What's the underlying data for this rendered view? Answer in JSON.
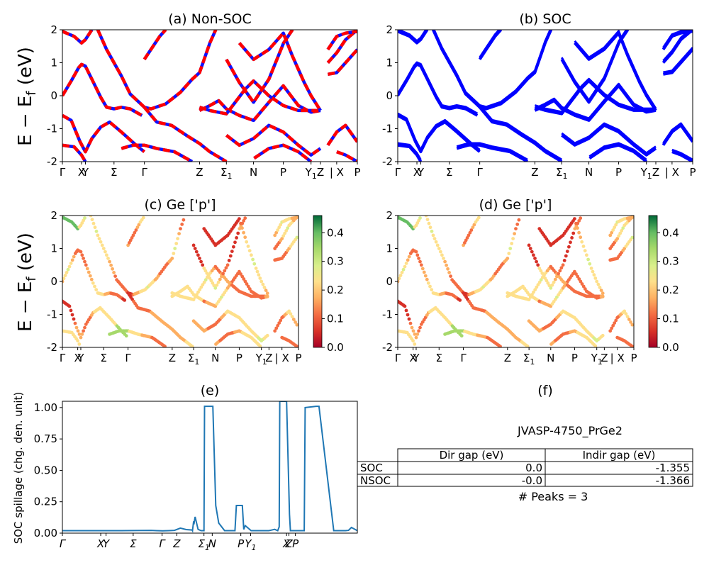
{
  "ylabel_main": "E − E",
  "ylabel_sub": "f",
  "ylabel_unit": " (eV)",
  "panels": {
    "a": {
      "title": "(a) Non-SOC",
      "ticks": [
        {
          "label": "Γ",
          "k": 0.0
        },
        {
          "label": "X",
          "k": 0.065
        },
        {
          "label": "Y",
          "k": 0.078
        },
        {
          "label": "Σ",
          "k": 0.175
        },
        {
          "label": "Γ",
          "k": 0.278
        },
        {
          "label": "Z",
          "k": 0.465
        },
        {
          "label": "Σ",
          "sub": "1",
          "k": 0.556
        },
        {
          "label": "N",
          "k": 0.648
        },
        {
          "label": "P",
          "k": 0.749
        },
        {
          "label": "Y",
          "sub": "1",
          "k": 0.843
        },
        {
          "label": "Z",
          "k": 0.875
        },
        {
          "label": "| X",
          "k": 0.93
        },
        {
          "label": "P",
          "k": 1.0
        }
      ],
      "yticks": [
        2,
        1,
        0,
        -1,
        -2
      ]
    },
    "b": {
      "title": "(b) SOC",
      "ticks": [
        {
          "label": "Γ",
          "k": 0.0
        },
        {
          "label": "X",
          "k": 0.065
        },
        {
          "label": "Y",
          "k": 0.078
        },
        {
          "label": "Σ",
          "k": 0.175
        },
        {
          "label": "Γ",
          "k": 0.278
        },
        {
          "label": "Z",
          "k": 0.465
        },
        {
          "label": "Σ",
          "sub": "1",
          "k": 0.556
        },
        {
          "label": "N",
          "k": 0.648
        },
        {
          "label": "P",
          "k": 0.749
        },
        {
          "label": "Y",
          "sub": "1",
          "k": 0.843
        },
        {
          "label": "Z",
          "k": 0.875
        },
        {
          "label": "| X",
          "k": 0.93
        },
        {
          "label": "P",
          "k": 1.0
        }
      ],
      "yticks": [
        2,
        1,
        0,
        -1,
        -2
      ]
    },
    "c": {
      "title": "(c)  Ge ['p']",
      "ticks": [
        {
          "label": "Γ",
          "k": 0.0
        },
        {
          "label": "X",
          "k": 0.065
        },
        {
          "label": "Y",
          "k": 0.078
        },
        {
          "label": "Σ",
          "k": 0.175
        },
        {
          "label": "Γ",
          "k": 0.278
        },
        {
          "label": "Z",
          "k": 0.465
        },
        {
          "label": "Σ",
          "sub": "1",
          "k": 0.556
        },
        {
          "label": "N",
          "k": 0.648
        },
        {
          "label": "P",
          "k": 0.749
        },
        {
          "label": "Y",
          "sub": "1",
          "k": 0.843
        },
        {
          "label": "Z",
          "k": 0.875
        },
        {
          "label": "| X",
          "k": 0.93
        },
        {
          "label": "P",
          "k": 1.0
        }
      ],
      "yticks": [
        2,
        1,
        0,
        -1,
        -2
      ],
      "colorbar_ticks": [
        "0.4",
        "0.3",
        "0.2",
        "0.1",
        "0.0"
      ]
    },
    "d": {
      "title": "(d) Ge ['p']",
      "ticks": [
        {
          "label": "Γ",
          "k": 0.0
        },
        {
          "label": "X",
          "k": 0.065
        },
        {
          "label": "Y",
          "k": 0.078
        },
        {
          "label": "Σ",
          "k": 0.175
        },
        {
          "label": "Γ",
          "k": 0.278
        },
        {
          "label": "Z",
          "k": 0.465
        },
        {
          "label": "Σ",
          "sub": "1",
          "k": 0.556
        },
        {
          "label": "N",
          "k": 0.648
        },
        {
          "label": "P",
          "k": 0.749
        },
        {
          "label": "Y",
          "sub": "1",
          "k": 0.843
        },
        {
          "label": "Z",
          "k": 0.875
        },
        {
          "label": "| X",
          "k": 0.93
        },
        {
          "label": "P",
          "k": 1.0
        }
      ],
      "yticks": [
        2,
        1,
        0,
        -1,
        -2
      ],
      "colorbar_ticks": [
        "0.4",
        "0.3",
        "0.2",
        "0.1",
        "0.0"
      ]
    },
    "e": {
      "title": "(e)",
      "ylabel": "SOC spillage (chg. den. unit)",
      "yticks": [
        "1.00",
        "0.75",
        "0.50",
        "0.25",
        "0.00"
      ],
      "ticks": [
        {
          "label": "Γ",
          "k": 0.0
        },
        {
          "label": "X",
          "k": 0.13
        },
        {
          "label": "Y",
          "k": 0.148
        },
        {
          "label": "Σ",
          "k": 0.24
        },
        {
          "label": "Γ",
          "k": 0.338
        },
        {
          "label": "Z",
          "k": 0.388
        },
        {
          "label": "Σ",
          "sub": "1",
          "k": 0.48
        },
        {
          "label": "N",
          "k": 0.508
        },
        {
          "label": "P",
          "k": 0.605
        },
        {
          "label": "Y",
          "sub": "1",
          "k": 0.638
        },
        {
          "label": "X",
          "k": 0.76
        },
        {
          "label": "Z",
          "k": 0.768
        },
        {
          "label": "P",
          "k": 0.79
        }
      ]
    },
    "f": {
      "title": "(f)",
      "material": "JVASP-4750_PrGe2",
      "table": {
        "header": [
          "",
          "Dir gap (eV)",
          "Indir gap (eV)"
        ],
        "rows": [
          [
            "SOC",
            "0.0",
            "-1.355"
          ],
          [
            "NSOC",
            "-0.0",
            "-1.366"
          ]
        ]
      },
      "peaks": "# Peaks = 3"
    }
  },
  "colors": {
    "nonsoc_red": "#ff0000",
    "nonsoc_blue": "#1010ff",
    "soc_blue": "#0000ff",
    "spillage": "#1f77b4"
  },
  "chart_data": [
    {
      "type": "line",
      "title": "(a) Non-SOC",
      "ylabel": "E − E_f (eV)",
      "ylim": [
        -2,
        2
      ],
      "series": [
        {
          "points": [
            [
              0,
              0.0
            ],
            [
              0.03,
              0.45
            ],
            [
              0.055,
              0.85
            ],
            [
              0.065,
              0.95
            ],
            [
              0.078,
              0.9
            ],
            [
              0.1,
              0.5
            ],
            [
              0.13,
              -0.05
            ],
            [
              0.15,
              -0.35
            ],
            [
              0.175,
              -0.4
            ],
            [
              0.2,
              -0.35
            ],
            [
              0.23,
              -0.4
            ],
            [
              0.27,
              -0.6
            ]
          ]
        },
        {
          "points": [
            [
              0,
              -0.6
            ],
            [
              0.03,
              -0.75
            ],
            [
              0.06,
              -1.4
            ],
            [
              0.078,
              -1.7
            ],
            [
              0.1,
              -1.3
            ],
            [
              0.13,
              -0.95
            ],
            [
              0.16,
              -0.8
            ],
            [
              0.2,
              -1.1
            ],
            [
              0.25,
              -1.5
            ],
            [
              0.278,
              -1.7
            ]
          ]
        },
        {
          "points": [
            [
              0,
              -1.5
            ],
            [
              0.04,
              -1.55
            ],
            [
              0.065,
              -1.8
            ],
            [
              0.078,
              -2.0
            ]
          ]
        },
        {
          "points": [
            [
              0,
              1.95
            ],
            [
              0.04,
              1.8
            ],
            [
              0.065,
              1.6
            ],
            [
              0.078,
              1.7
            ],
            [
              0.1,
              2.0
            ]
          ]
        },
        {
          "points": [
            [
              0.12,
              2.0
            ],
            [
              0.15,
              1.4
            ],
            [
              0.175,
              1.0
            ],
            [
              0.2,
              0.6
            ],
            [
              0.23,
              0.05
            ],
            [
              0.26,
              -0.2
            ],
            [
              0.278,
              -0.35
            ],
            [
              0.3,
              -0.4
            ],
            [
              0.35,
              -0.25
            ],
            [
              0.4,
              0.1
            ],
            [
              0.44,
              0.5
            ],
            [
              0.465,
              0.7
            ],
            [
              0.5,
              1.6
            ],
            [
              0.52,
              2.0
            ]
          ]
        },
        {
          "points": [
            [
              0.278,
              -0.35
            ],
            [
              0.32,
              -0.8
            ],
            [
              0.37,
              -0.9
            ],
            [
              0.42,
              -1.2
            ],
            [
              0.465,
              -1.45
            ],
            [
              0.5,
              -1.7
            ],
            [
              0.556,
              -2.0
            ]
          ]
        },
        {
          "points": [
            [
              0.2,
              -1.6
            ],
            [
              0.24,
              -1.5
            ],
            [
              0.278,
              -1.5
            ],
            [
              0.32,
              -1.6
            ],
            [
              0.38,
              -1.7
            ],
            [
              0.44,
              -2.0
            ]
          ]
        },
        {
          "points": [
            [
              0.278,
              1.1
            ],
            [
              0.3,
              1.4
            ],
            [
              0.33,
              1.8
            ],
            [
              0.35,
              2.0
            ]
          ]
        },
        {
          "points": [
            [
              0.465,
              -0.45
            ],
            [
              0.5,
              -0.3
            ],
            [
              0.53,
              -0.15
            ],
            [
              0.556,
              -0.4
            ],
            [
              0.6,
              -0.6
            ],
            [
              0.648,
              -0.75
            ],
            [
              0.7,
              -0.2
            ],
            [
              0.749,
              0.3
            ],
            [
              0.8,
              -0.3
            ],
            [
              0.843,
              -0.5
            ],
            [
              0.875,
              -0.45
            ]
          ]
        },
        {
          "points": [
            [
              0.465,
              -0.35
            ],
            [
              0.5,
              -0.45
            ],
            [
              0.556,
              -0.55
            ],
            [
              0.62,
              0.2
            ],
            [
              0.648,
              0.45
            ],
            [
              0.7,
              0.0
            ],
            [
              0.749,
              -0.3
            ],
            [
              0.8,
              -0.45
            ],
            [
              0.843,
              -0.45
            ],
            [
              0.875,
              -0.45
            ]
          ]
        },
        {
          "points": [
            [
              0.556,
              1.1
            ],
            [
              0.6,
              0.4
            ],
            [
              0.648,
              -0.2
            ],
            [
              0.7,
              0.5
            ],
            [
              0.75,
              1.6
            ],
            [
              0.78,
              2.0
            ]
          ]
        },
        {
          "points": [
            [
              0.6,
              1.6
            ],
            [
              0.648,
              1.1
            ],
            [
              0.7,
              1.4
            ],
            [
              0.749,
              1.9
            ],
            [
              0.78,
              1.2
            ],
            [
              0.82,
              0.4
            ],
            [
              0.843,
              0.0
            ],
            [
              0.875,
              -0.45
            ]
          ]
        },
        {
          "points": [
            [
              0.556,
              -1.2
            ],
            [
              0.6,
              -1.5
            ],
            [
              0.648,
              -1.3
            ],
            [
              0.7,
              -0.9
            ],
            [
              0.749,
              -1.1
            ],
            [
              0.8,
              -1.5
            ],
            [
              0.843,
              -1.8
            ],
            [
              0.875,
              -1.6
            ]
          ]
        },
        {
          "points": [
            [
              0.65,
              -1.9
            ],
            [
              0.7,
              -1.6
            ],
            [
              0.749,
              -1.5
            ],
            [
              0.8,
              -1.7
            ],
            [
              0.843,
              -2.0
            ]
          ]
        },
        {
          "points": [
            [
              0.9,
              0.65
            ],
            [
              0.93,
              0.7
            ],
            [
              0.96,
              1.0
            ],
            [
              1.0,
              1.4
            ]
          ]
        },
        {
          "points": [
            [
              0.9,
              1.0
            ],
            [
              0.93,
              1.3
            ],
            [
              0.96,
              1.7
            ],
            [
              1.0,
              2.0
            ]
          ]
        },
        {
          "points": [
            [
              0.9,
              1.4
            ],
            [
              0.93,
              1.8
            ],
            [
              0.96,
              1.9
            ],
            [
              1.0,
              1.95
            ]
          ]
        },
        {
          "points": [
            [
              0.9,
              -1.5
            ],
            [
              0.93,
              -1.1
            ],
            [
              0.96,
              -0.9
            ],
            [
              1.0,
              -1.4
            ]
          ]
        },
        {
          "points": [
            [
              0.93,
              -1.7
            ],
            [
              0.96,
              -1.8
            ],
            [
              1.0,
              -2.0
            ]
          ]
        }
      ]
    },
    {
      "type": "line",
      "title": "(b) SOC",
      "ylim": [
        -2,
        2
      ],
      "series": []
    },
    {
      "type": "scatter",
      "title": "(c)  Ge ['p']",
      "ylabel": "E − E_f (eV)",
      "ylim": [
        -2,
        2
      ],
      "colorbar_range": [
        0.0,
        0.46
      ]
    },
    {
      "type": "scatter",
      "title": "(d) Ge ['p']",
      "ylim": [
        -2,
        2
      ],
      "colorbar_range": [
        0.0,
        0.46
      ]
    },
    {
      "type": "line",
      "title": "(e)",
      "ylabel": "SOC spillage (chg. den. unit)",
      "ylim": [
        0,
        1.05
      ],
      "x": [
        0,
        0.1,
        0.2,
        0.3,
        0.32,
        0.34,
        0.36,
        0.38,
        0.4,
        0.42,
        0.44,
        0.441,
        0.445,
        0.446,
        0.45,
        0.46,
        0.47,
        0.48,
        0.482,
        0.5,
        0.508,
        0.51,
        0.52,
        0.53,
        0.55,
        0.58,
        0.585,
        0.59,
        0.6,
        0.605,
        0.61,
        0.615,
        0.62,
        0.64,
        0.68,
        0.7,
        0.72,
        0.73,
        0.735,
        0.737,
        0.74,
        0.76,
        0.77,
        0.773,
        0.79,
        0.8,
        0.82,
        0.823,
        0.86,
        0.87,
        0.92,
        0.96,
        0.97,
        0.98,
        1.0
      ],
      "values": [
        0.02,
        0.02,
        0.02,
        0.022,
        0.02,
        0.018,
        0.02,
        0.022,
        0.04,
        0.028,
        0.025,
        0.02,
        0.095,
        0.07,
        0.13,
        0.03,
        0.02,
        0.02,
        1.01,
        1.01,
        1.01,
        1.01,
        0.22,
        0.08,
        0.02,
        0.02,
        0.02,
        0.22,
        0.22,
        0.22,
        0.22,
        0.03,
        0.06,
        0.02,
        0.02,
        0.02,
        0.03,
        0.02,
        0.05,
        1.05,
        1.05,
        1.05,
        0.15,
        0.02,
        0.02,
        0.02,
        0.02,
        1.0,
        1.01,
        1.01,
        0.02,
        0.02,
        0.022,
        0.045,
        0.02
      ]
    }
  ]
}
